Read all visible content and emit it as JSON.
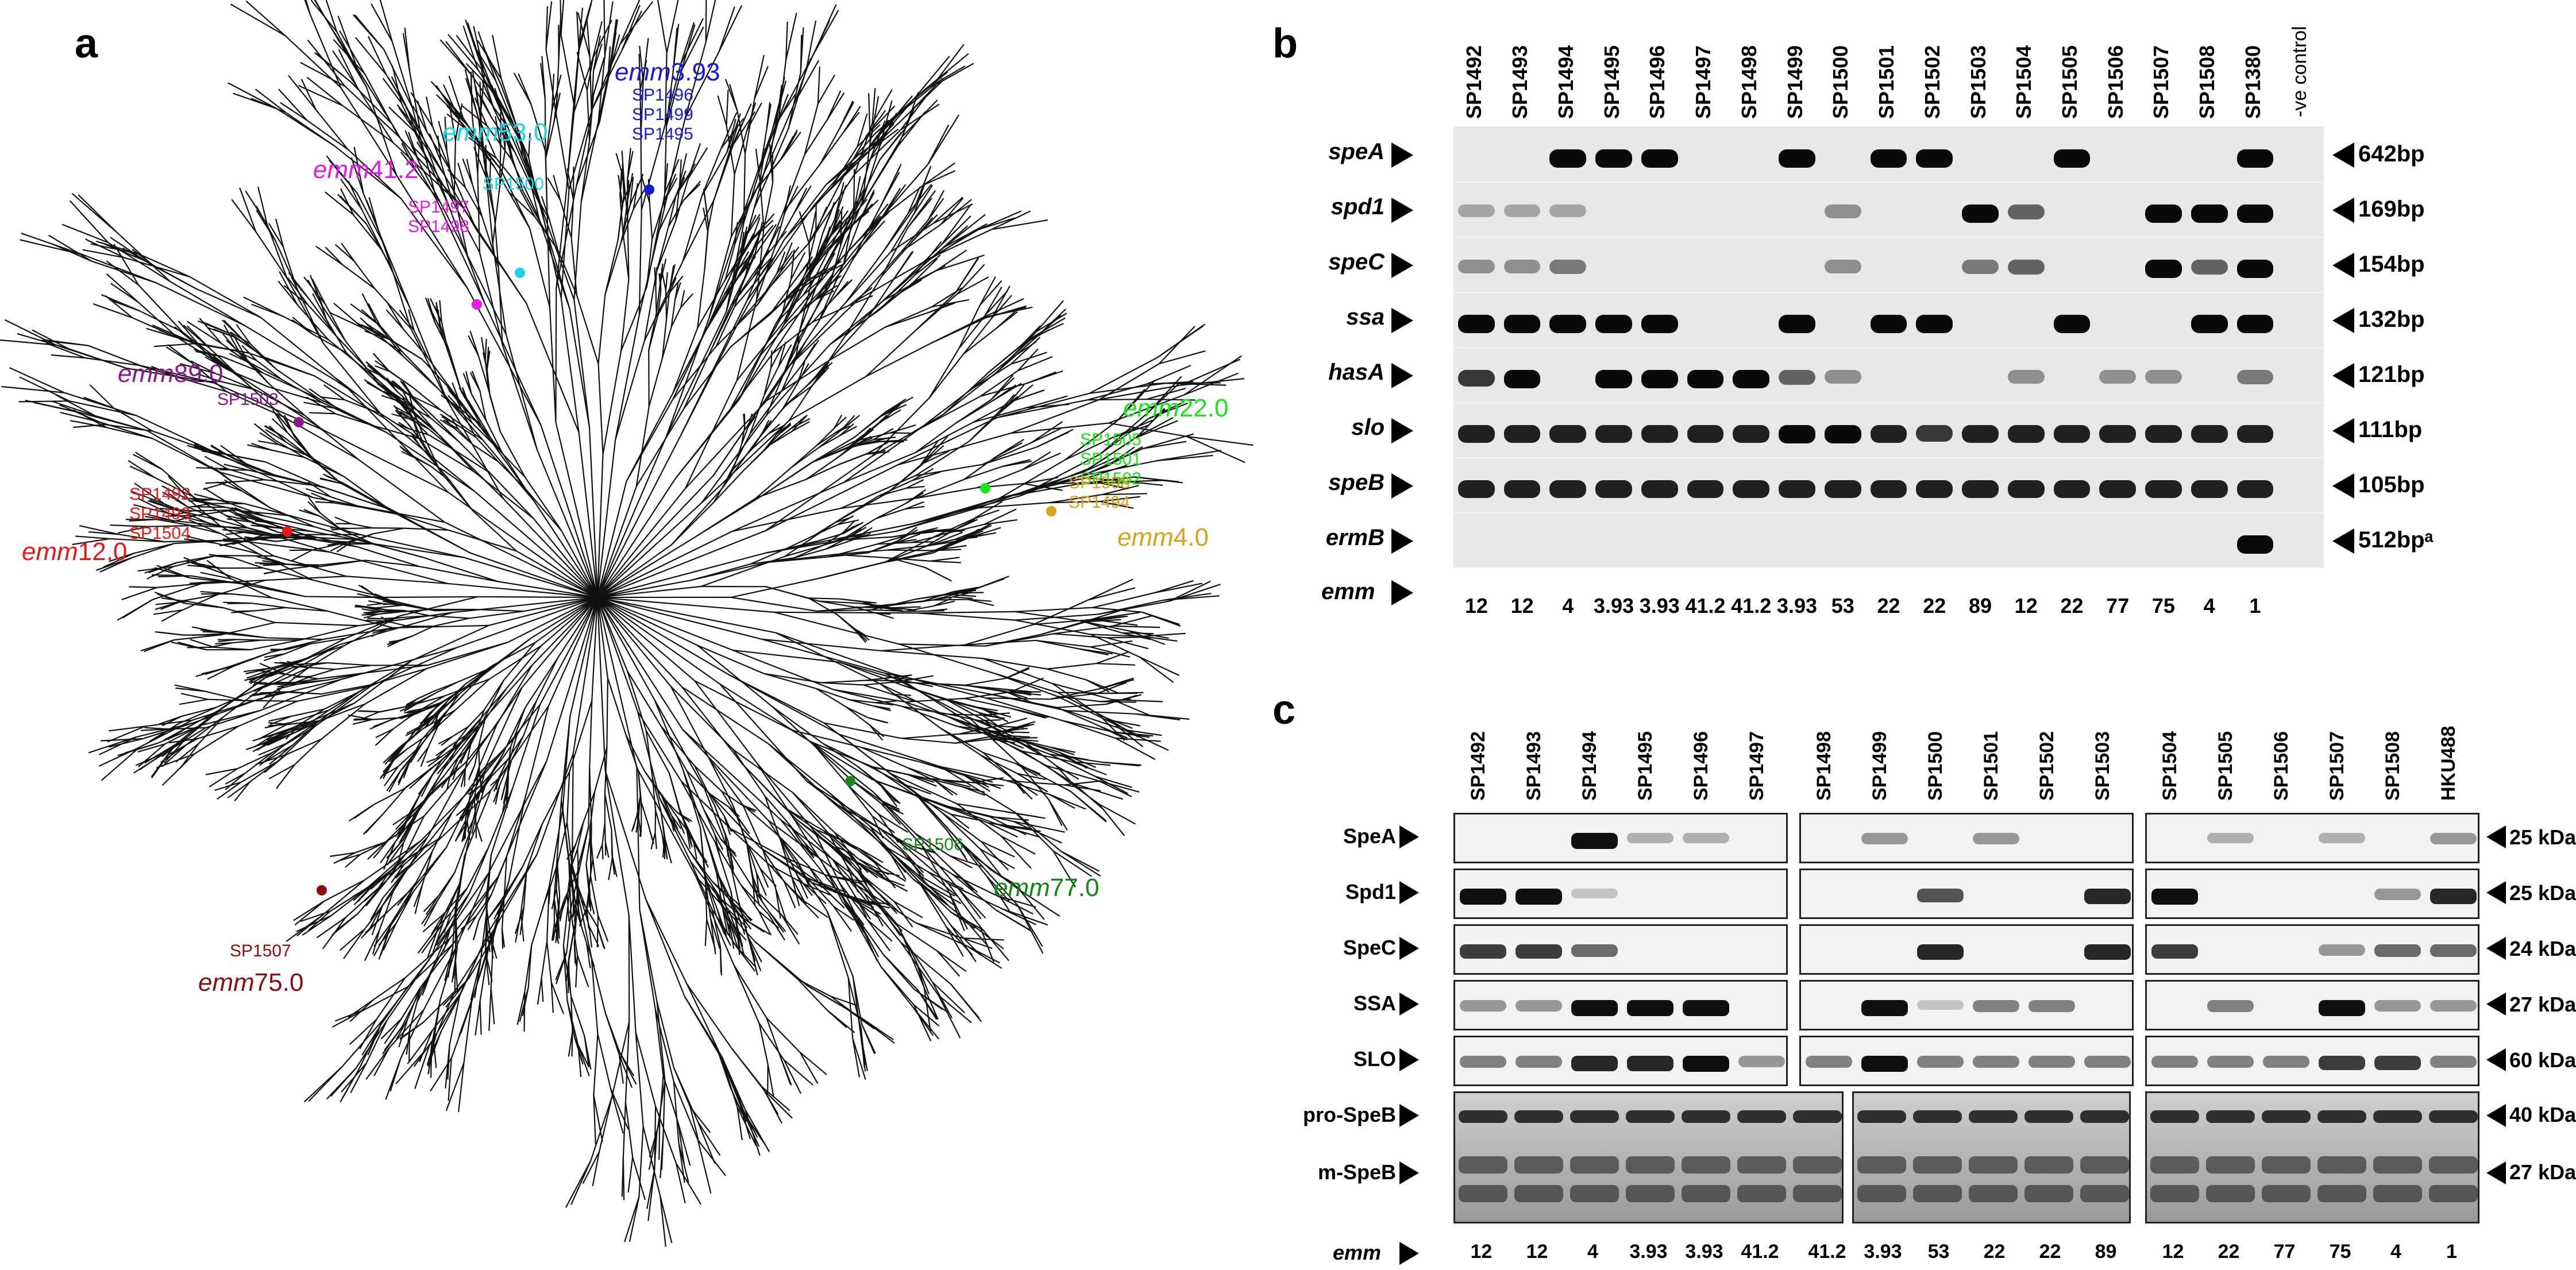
{
  "panels": {
    "a": "a",
    "b": "b",
    "c": "c"
  },
  "tree": {
    "clades": [
      {
        "emm": "3.93",
        "color": "#1a1ad6",
        "strains": [
          "SP1496",
          "SP1499",
          "SP1495"
        ]
      },
      {
        "emm": "53.0",
        "color": "#1ad4e6",
        "strains": [
          "SP1500"
        ]
      },
      {
        "emm": "41.2",
        "color": "#e619e6",
        "strains": [
          "SP1497",
          "SP1498"
        ]
      },
      {
        "emm": "89.0",
        "color": "#8a1a8a",
        "strains": [
          "SP1503"
        ]
      },
      {
        "emm": "12.0",
        "color": "#e61919",
        "strains": [
          "SP1492",
          "SP1493",
          "SP1504"
        ]
      },
      {
        "emm": "22.0",
        "color": "#19e619",
        "strains": [
          "SP1505",
          "SP1501",
          "SP1502"
        ]
      },
      {
        "emm": "4.0",
        "color": "#d9a21a",
        "strains": [
          "SP1508",
          "SP1494"
        ]
      },
      {
        "emm": "77.0",
        "color": "#108a10",
        "strains": [
          "SP1506"
        ]
      },
      {
        "emm": "75.0",
        "color": "#8a1010",
        "strains": [
          "SP1507"
        ]
      }
    ],
    "emm_prefix": "emm"
  },
  "panel_b": {
    "lanes": [
      "SP1492",
      "SP1493",
      "SP1494",
      "SP1495",
      "SP1496",
      "SP1497",
      "SP1498",
      "SP1499",
      "SP1500",
      "SP1501",
      "SP1502",
      "SP1503",
      "SP1504",
      "SP1505",
      "SP1506",
      "SP1507",
      "SP1508",
      "SP1380",
      "-ve control"
    ],
    "genes": [
      "speA",
      "spd1",
      "speC",
      "ssa",
      "hasA",
      "slo",
      "speB",
      "ermB"
    ],
    "sizes": [
      "642bp",
      "169bp",
      "154bp",
      "132bp",
      "121bp",
      "111bp",
      "105bp",
      "512bpᵃ"
    ],
    "emm_label": "emm",
    "emm": [
      "12",
      "12",
      "4",
      "3.93",
      "3.93",
      "41.2",
      "41.2",
      "3.93",
      "53",
      "22",
      "22",
      "89",
      "12",
      "22",
      "77",
      "75",
      "4",
      "1"
    ],
    "bands": [
      [
        0,
        0,
        1,
        1,
        1,
        0,
        0,
        1,
        0,
        1,
        1,
        0,
        0,
        1,
        0,
        0,
        0,
        1
      ],
      [
        0.3,
        0.3,
        0.3,
        0,
        0,
        0,
        0,
        0,
        0.4,
        0,
        0,
        1,
        0.6,
        0,
        0,
        1,
        1,
        1
      ],
      [
        0.4,
        0.4,
        0.5,
        0,
        0,
        0,
        0,
        0,
        0.4,
        0,
        0,
        0.5,
        0.6,
        0,
        0,
        1,
        0.6,
        1
      ],
      [
        1,
        1,
        1,
        1,
        1,
        0,
        0,
        1,
        0,
        1,
        1,
        0,
        0,
        1,
        0,
        0,
        1,
        1
      ],
      [
        0.8,
        1,
        0,
        1,
        1,
        1,
        1,
        0.6,
        0.4,
        0,
        0,
        0,
        0.4,
        0,
        0.4,
        0.4,
        0,
        0.5
      ],
      [
        0.9,
        0.9,
        0.9,
        0.9,
        0.9,
        0.9,
        0.9,
        1,
        1,
        0.9,
        0.8,
        0.9,
        0.9,
        0.9,
        0.9,
        0.9,
        0.9,
        0.9
      ],
      [
        0.9,
        0.9,
        0.9,
        0.9,
        0.9,
        0.9,
        0.9,
        0.9,
        0.9,
        0.9,
        0.9,
        0.9,
        0.9,
        0.9,
        0.9,
        0.9,
        0.9,
        0.9
      ],
      [
        0,
        0,
        0,
        0,
        0,
        0,
        0,
        0,
        0,
        0,
        0,
        0,
        0,
        0,
        0,
        0,
        0,
        1
      ]
    ]
  },
  "panel_c": {
    "lanes": [
      "SP1492",
      "SP1493",
      "SP1494",
      "SP1495",
      "SP1496",
      "SP1497",
      "SP1498",
      "SP1499",
      "SP1500",
      "SP1501",
      "SP1502",
      "SP1503",
      "SP1504",
      "SP1505",
      "SP1506",
      "SP1507",
      "SP1508",
      "HKU488"
    ],
    "proteins": [
      "SpeA",
      "Spd1",
      "SpeC",
      "SSA",
      "SLO",
      "pro-SpeB",
      "m-SpeB"
    ],
    "sizes": [
      "25 kDa",
      "25 kDa",
      "24 kDa",
      "27 kDa",
      "60 kDa",
      "40 kDa",
      "27 kDa"
    ],
    "emm_label": "emm",
    "emm": [
      "12",
      "12",
      "4",
      "3.93",
      "3.93",
      "41.2",
      "41.2",
      "3.93",
      "53",
      "22",
      "22",
      "89",
      "12",
      "22",
      "77",
      "75",
      "4",
      "1"
    ]
  }
}
